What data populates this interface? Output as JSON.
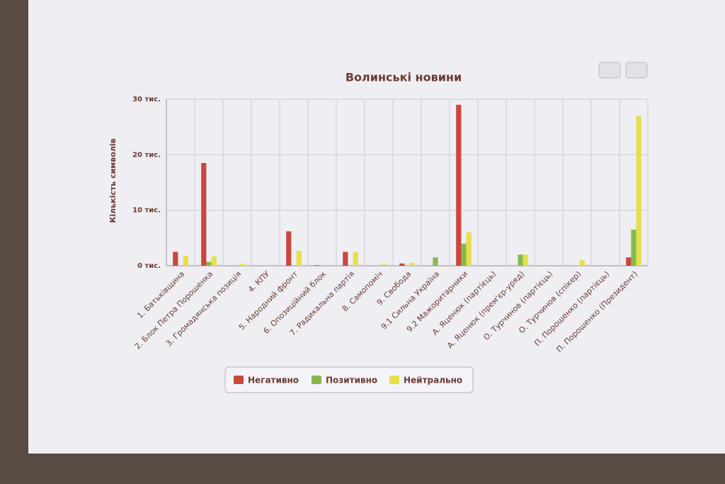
{
  "chart_data": {
    "type": "bar",
    "title": "Волинські новини",
    "y_label": "Кількість символів",
    "categories": [
      "1. Батьківщина",
      "2. Блок Петра Порошенка",
      "3. Громадянська позиція",
      "4. КПУ",
      "5. Народний фронт",
      "6. Опозиційний блок",
      "7. Радикальна партія",
      "8. Самопоміч",
      "9. Свобода",
      "9.1 Сильна Україна",
      "9.2 Мажоритарники",
      "А. Яценюк (партієць)",
      "А. Яценюк (прем'єр-уряд)",
      "О. Турчинов (партієць)",
      "О. Турчинов (спікер)",
      "П. Порошенко (партієць)",
      "П. Порошенко (Президент)"
    ],
    "series": [
      {
        "name": "Негативно",
        "color": "#c9473b",
        "values": [
          2500,
          18500,
          0,
          0,
          6200,
          100,
          2500,
          0,
          400,
          0,
          29000,
          0,
          0,
          0,
          0,
          0,
          1500
        ]
      },
      {
        "name": "Позитивно",
        "color": "#86b94a",
        "values": [
          0,
          700,
          0,
          0,
          0,
          0,
          0,
          0,
          0,
          1500,
          4000,
          0,
          2000,
          0,
          0,
          0,
          6500
        ]
      },
      {
        "name": "Нейтрально",
        "color": "#e6df4c",
        "values": [
          1800,
          1700,
          300,
          0,
          2700,
          0,
          2500,
          300,
          500,
          0,
          6000,
          0,
          2000,
          0,
          1000,
          0,
          27000
        ]
      }
    ],
    "ylim": [
      0,
      30000
    ],
    "yticks": [
      {
        "value": 0,
        "label": "0 тис."
      },
      {
        "value": 10000,
        "label": "10 тис."
      },
      {
        "value": 20000,
        "label": "20 тис."
      },
      {
        "value": 30000,
        "label": "30 тис."
      }
    ],
    "grid": true
  }
}
